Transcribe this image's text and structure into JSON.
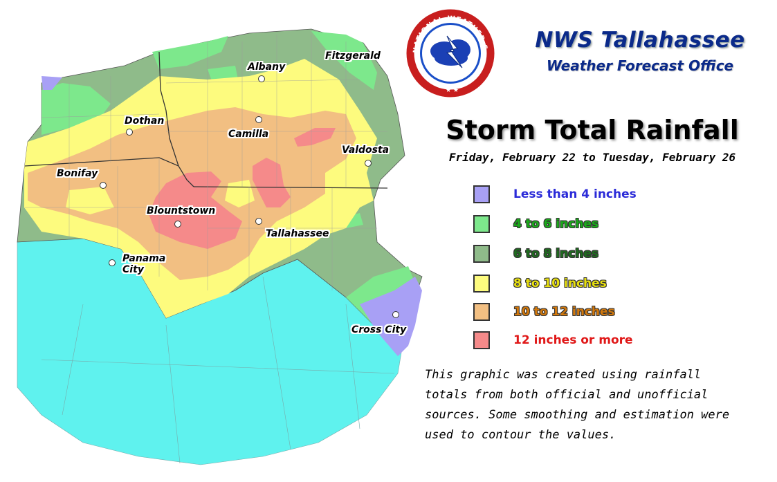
{
  "header": {
    "office_name": "NWS Tallahassee",
    "office_subtitle": "Weather Forecast Office",
    "logo_text": "NATIONAL WEATHER SERVICE"
  },
  "title": "Storm Total Rainfall",
  "date_range": "Friday, February 22 to Tuesday, February 26",
  "legend": [
    {
      "label": "Less than 4 inches",
      "color": "#a8a0f5",
      "text_color": "#2b2bd8"
    },
    {
      "label": "4 to 6 inches",
      "color": "#7de88c",
      "text_color": "#1aaa1a"
    },
    {
      "label": "6 to 8 inches",
      "color": "#8fbb8a",
      "text_color": "#1f6b1f"
    },
    {
      "label": "8 to 10 inches",
      "color": "#fdfb7e",
      "text_color": "#e8e010"
    },
    {
      "label": "10 to 12 inches",
      "color": "#f2bf82",
      "text_color": "#d2780c"
    },
    {
      "label": "12 inches or more",
      "color": "#f58a8a",
      "text_color": "#e01818"
    }
  ],
  "cities": [
    {
      "name": "Fitzgerald"
    },
    {
      "name": "Albany"
    },
    {
      "name": "Dothan"
    },
    {
      "name": "Camilla"
    },
    {
      "name": "Valdosta"
    },
    {
      "name": "Bonifay"
    },
    {
      "name": "Blountstown"
    },
    {
      "name": "Tallahassee"
    },
    {
      "name": "Panama City"
    },
    {
      "name": "Cross City"
    }
  ],
  "note": "This graphic was created using rainfall totals from both official and unofficial sources. Some smoothing and estimation were used to contour the values.",
  "colors": {
    "water": "#5ff2ee",
    "title_blue": "#0b2a8a"
  }
}
